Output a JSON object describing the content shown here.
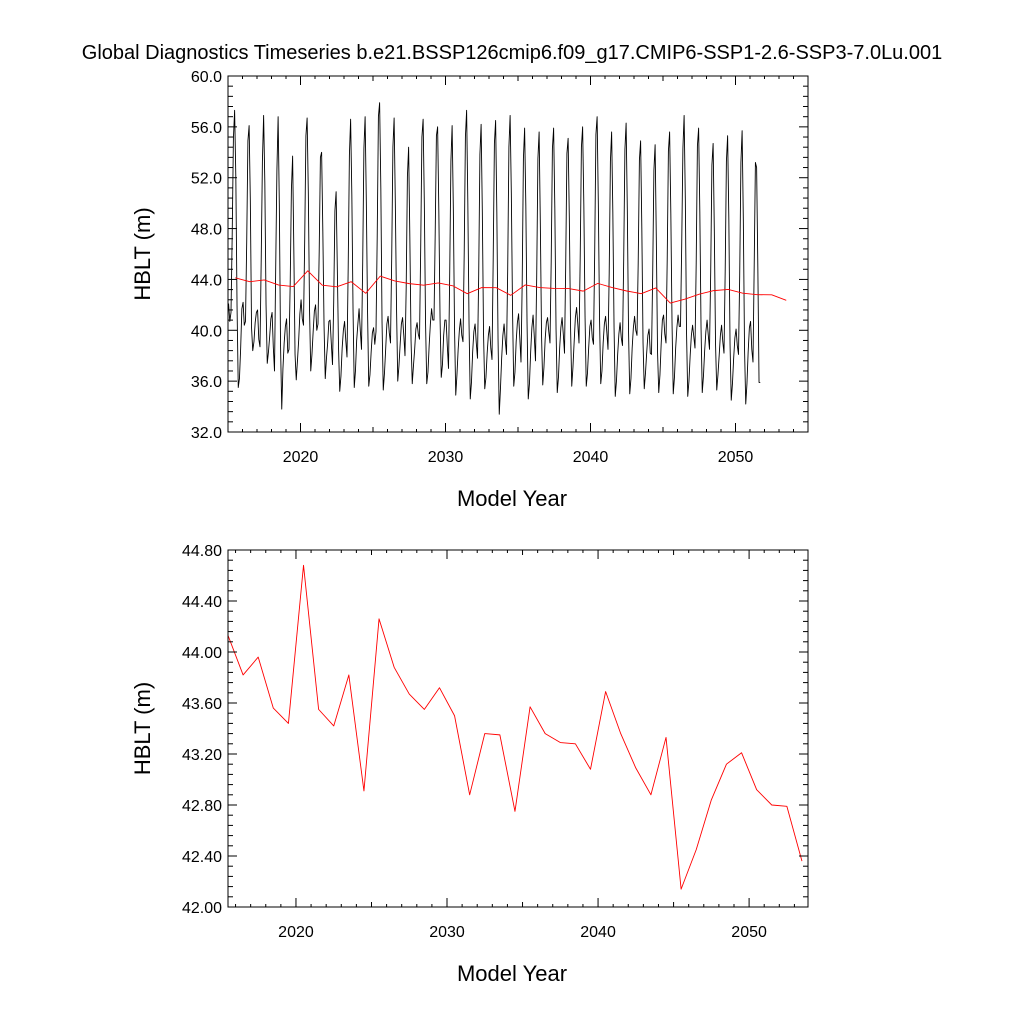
{
  "title": "Global Diagnostics Timeseries b.e21.BSSP126cmip6.f09_g17.CMIP6-SSP1-2.6-SSP3-7.0Lu.001",
  "chart_data": [
    {
      "type": "line",
      "xlabel": "Model Year",
      "ylabel": "HBLT (m)",
      "xlim": [
        2015,
        2055
      ],
      "ylim": [
        32.0,
        60.0
      ],
      "x_ticks": [
        2020,
        2030,
        2040,
        2050
      ],
      "y_ticks": [
        "32.0",
        "36.0",
        "40.0",
        "44.0",
        "48.0",
        "52.0",
        "56.0",
        "60.0"
      ],
      "grid": false,
      "series": [
        {
          "color": "#000000",
          "x_start": 2015.04,
          "x_step": 0.0833333,
          "values": [
            42.1,
            40.7,
            41.4,
            47.5,
            55.1,
            57.3,
            52.0,
            41.9,
            35.5,
            36.2,
            38.6,
            41.7,
            42.2,
            40.4,
            40.7,
            46.9,
            54.9,
            56.1,
            50.2,
            40.2,
            38.4,
            39.1,
            40.6,
            41.4,
            41.6,
            39.3,
            38.7,
            45.5,
            53.3,
            56.9,
            51.6,
            42.0,
            37.4,
            38.3,
            39.5,
            40.9,
            41.4,
            38.7,
            36.8,
            44.9,
            52.6,
            56.8,
            49.9,
            38.8,
            33.8,
            37.0,
            39.0,
            40.3,
            40.9,
            38.2,
            38.5,
            43.7,
            51.1,
            53.7,
            46.3,
            38.1,
            36.1,
            37.6,
            39.2,
            41.3,
            42.4,
            40.9,
            40.4,
            47.1,
            55.3,
            56.7,
            50.8,
            41.6,
            36.8,
            38.1,
            39.9,
            41.5,
            42.0,
            40.0,
            40.5,
            46.2,
            53.6,
            54.0,
            47.8,
            40.4,
            36.2,
            37.8,
            39.0,
            40.7,
            40.8,
            39.0,
            37.3,
            42.2,
            49.4,
            50.9,
            44.8,
            38.6,
            35.2,
            36.4,
            38.6,
            40.0,
            40.7,
            39.2,
            37.9,
            45.0,
            53.8,
            56.6,
            50.7,
            41.6,
            35.5,
            36.8,
            39.2,
            40.5,
            41.7,
            40.0,
            38.5,
            45.3,
            54.3,
            56.8,
            50.1,
            41.5,
            35.6,
            36.5,
            38.3,
            39.8,
            40.2,
            38.9,
            39.9,
            47.3,
            56.8,
            57.9,
            51.2,
            40.6,
            35.3,
            36.6,
            38.5,
            40.5,
            41.1,
            39.8,
            39.0,
            45.7,
            54.4,
            56.7,
            50.0,
            41.7,
            36.0,
            37.2,
            38.9,
            40.5,
            41.0,
            39.6,
            38.0,
            43.4,
            52.1,
            54.4,
            47.4,
            39.2,
            35.8,
            37.2,
            38.5,
            40.1,
            40.6,
            39.7,
            39.3,
            46.5,
            55.2,
            56.6,
            50.0,
            40.6,
            35.8,
            36.7,
            38.8,
            40.5,
            41.7,
            40.8,
            40.8,
            47.6,
            55.3,
            56.0,
            49.4,
            41.0,
            36.3,
            37.3,
            39.6,
            40.8,
            40.8,
            38.8,
            37.0,
            44.4,
            53.3,
            56.1,
            49.6,
            40.1,
            34.9,
            36.5,
            38.5,
            40.0,
            40.9,
            39.6,
            39.1,
            46.0,
            55.2,
            57.3,
            50.0,
            40.5,
            34.6,
            35.9,
            38.3,
            39.9,
            40.5,
            39.0,
            37.8,
            44.4,
            53.8,
            56.2,
            49.3,
            39.7,
            35.4,
            36.3,
            38.2,
            39.6,
            40.3,
            38.6,
            37.7,
            45.6,
            54.7,
            56.5,
            49.3,
            39.3,
            33.4,
            35.4,
            37.8,
            39.6,
            40.5,
            39.2,
            38.1,
            44.8,
            54.4,
            56.9,
            50.8,
            41.5,
            35.6,
            36.7,
            39.1,
            40.6,
            41.3,
            39.4,
            37.5,
            43.8,
            53.5,
            55.9,
            49.8,
            40.6,
            34.6,
            35.8,
            38.3,
            40.2,
            41.2,
            39.5,
            37.6,
            44.2,
            53.5,
            55.6,
            48.4,
            39.6,
            35.7,
            37.1,
            39.3,
            40.6,
            41.0,
            39.9,
            39.0,
            45.4,
            54.3,
            55.9,
            49.6,
            40.1,
            35.1,
            36.3,
            38.6,
            40.2,
            41.0,
            39.7,
            38.2,
            45.1,
            53.9,
            55.1,
            48.8,
            40.3,
            35.6,
            37.1,
            39.1,
            41.0,
            41.8,
            40.5,
            39.0,
            45.7,
            54.4,
            56.0,
            49.9,
            41.1,
            35.6,
            36.6,
            38.6,
            40.3,
            40.8,
            39.4,
            38.9,
            46.2,
            55.4,
            56.8,
            50.0,
            40.9,
            35.8,
            36.8,
            39.0,
            40.5,
            41.1,
            39.9,
            38.5,
            44.5,
            53.3,
            55.6,
            49.3,
            40.3,
            34.8,
            36.0,
            38.1,
            39.7,
            40.6,
            39.4,
            38.8,
            45.6,
            54.2,
            56.3,
            49.4,
            39.9,
            35.0,
            36.2,
            38.6,
            40.2,
            41.1,
            40.0,
            39.6,
            45.3,
            53.4,
            54.9,
            48.0,
            39.0,
            35.4,
            36.6,
            38.2,
            39.6,
            40.1,
            38.2,
            38.1,
            44.5,
            52.6,
            54.6,
            47.1,
            38.3,
            35.1,
            36.5,
            38.9,
            40.8,
            41.2,
            39.7,
            39.0,
            45.5,
            54.1,
            55.6,
            49.2,
            40.5,
            35.0,
            36.3,
            38.6,
            40.2,
            41.2,
            40.3,
            40.3,
            46.7,
            54.3,
            56.9,
            50.3,
            39.8,
            34.8,
            36.0,
            38.0,
            39.6,
            40.4,
            39.5,
            38.6,
            45.3,
            54.5,
            55.9,
            49.3,
            40.2,
            35.1,
            36.4,
            38.4,
            39.9,
            40.8,
            39.6,
            38.5,
            44.6,
            53.0,
            54.7,
            47.8,
            38.9,
            35.3,
            36.5,
            38.0,
            39.6,
            40.4,
            39.1,
            38.2,
            44.7,
            53.3,
            55.3,
            48.8,
            38.9,
            34.5,
            35.8,
            37.8,
            39.4,
            40.1,
            38.8,
            38.1,
            44.3,
            53.2,
            55.7,
            48.7,
            38.5,
            34.2,
            35.8,
            38.3,
            40.2,
            40.7,
            38.5,
            37.5,
            45.1,
            53.2,
            52.8,
            45.0,
            35.9,
            35.9
          ]
        },
        {
          "color": "#ff0000",
          "x": [
            2015.5,
            2016.5,
            2017.5,
            2018.5,
            2019.5,
            2020.5,
            2021.5,
            2022.5,
            2023.5,
            2024.5,
            2025.5,
            2026.5,
            2027.5,
            2028.5,
            2029.5,
            2030.5,
            2031.5,
            2032.5,
            2033.5,
            2034.5,
            2035.5,
            2036.5,
            2037.5,
            2038.5,
            2039.5,
            2040.5,
            2041.5,
            2042.5,
            2043.5,
            2044.5,
            2045.5,
            2046.5,
            2047.5,
            2048.5,
            2049.5,
            2050.5,
            2051.5,
            2052.5,
            2053.5
          ],
          "values": [
            44.13,
            43.82,
            43.96,
            43.56,
            43.44,
            44.68,
            43.55,
            43.42,
            43.82,
            42.91,
            44.26,
            43.88,
            43.67,
            43.55,
            43.72,
            43.5,
            42.88,
            43.36,
            43.35,
            42.75,
            43.57,
            43.36,
            43.29,
            43.28,
            43.08,
            43.69,
            43.36,
            43.09,
            42.88,
            43.33,
            42.14,
            42.45,
            42.84,
            43.12,
            43.21,
            42.92,
            42.8,
            42.79,
            42.36
          ]
        }
      ]
    },
    {
      "type": "line",
      "xlabel": "Model Year",
      "ylabel": "HBLT (m)",
      "xlim": [
        2015.5,
        2053.9
      ],
      "ylim": [
        42.0,
        44.8
      ],
      "x_ticks": [
        2020,
        2030,
        2040,
        2050
      ],
      "y_ticks": [
        "42.00",
        "42.40",
        "42.80",
        "43.20",
        "43.60",
        "44.00",
        "44.40",
        "44.80"
      ],
      "grid": false,
      "series": [
        {
          "color": "#ff0000",
          "x": [
            2015.5,
            2016.5,
            2017.5,
            2018.5,
            2019.5,
            2020.5,
            2021.5,
            2022.5,
            2023.5,
            2024.5,
            2025.5,
            2026.5,
            2027.5,
            2028.5,
            2029.5,
            2030.5,
            2031.5,
            2032.5,
            2033.5,
            2034.5,
            2035.5,
            2036.5,
            2037.5,
            2038.5,
            2039.5,
            2040.5,
            2041.5,
            2042.5,
            2043.5,
            2044.5,
            2045.5,
            2046.5,
            2047.5,
            2048.5,
            2049.5,
            2050.5,
            2051.5,
            2052.5,
            2053.5
          ],
          "values": [
            44.13,
            43.82,
            43.96,
            43.56,
            43.44,
            44.68,
            43.55,
            43.42,
            43.82,
            42.91,
            44.26,
            43.88,
            43.67,
            43.55,
            43.72,
            43.5,
            42.88,
            43.36,
            43.35,
            42.75,
            43.57,
            43.36,
            43.29,
            43.28,
            43.08,
            43.69,
            43.36,
            43.09,
            42.88,
            43.33,
            42.14,
            42.45,
            42.84,
            43.12,
            43.21,
            42.92,
            42.8,
            42.79,
            42.36
          ]
        }
      ]
    }
  ]
}
